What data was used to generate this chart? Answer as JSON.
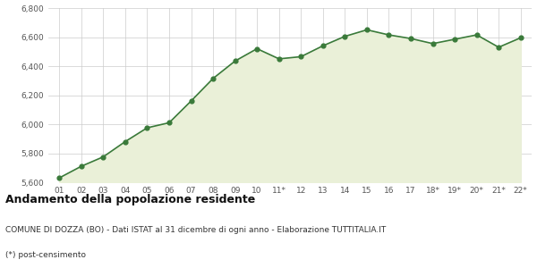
{
  "x_labels": [
    "01",
    "02",
    "03",
    "04",
    "05",
    "06",
    "07",
    "08",
    "09",
    "10",
    "11*",
    "12",
    "13",
    "14",
    "15",
    "16",
    "17",
    "18*",
    "19*",
    "20*",
    "21*",
    "22*"
  ],
  "y_values": [
    5630,
    5710,
    5775,
    5880,
    5975,
    6010,
    6160,
    6315,
    6435,
    6520,
    6450,
    6465,
    6540,
    6605,
    6650,
    6615,
    6590,
    6555,
    6585,
    6615,
    6530,
    6595
  ],
  "line_color": "#3a7a3a",
  "fill_color": "#eaf0d8",
  "marker_color": "#3a7a3a",
  "bg_color": "#ffffff",
  "plot_bg_color": "#ffffff",
  "grid_color": "#cccccc",
  "ylim": [
    5600,
    6800
  ],
  "yticks": [
    5600,
    5800,
    6000,
    6200,
    6400,
    6600,
    6800
  ],
  "title": "Andamento della popolazione residente",
  "subtitle": "COMUNE DI DOZZA (BO) - Dati ISTAT al 31 dicembre di ogni anno - Elaborazione TUTTITALIA.IT",
  "footnote": "(*) post-censimento",
  "title_fontsize": 9,
  "subtitle_fontsize": 6.5,
  "footnote_fontsize": 6.5,
  "tick_fontsize": 6.5
}
